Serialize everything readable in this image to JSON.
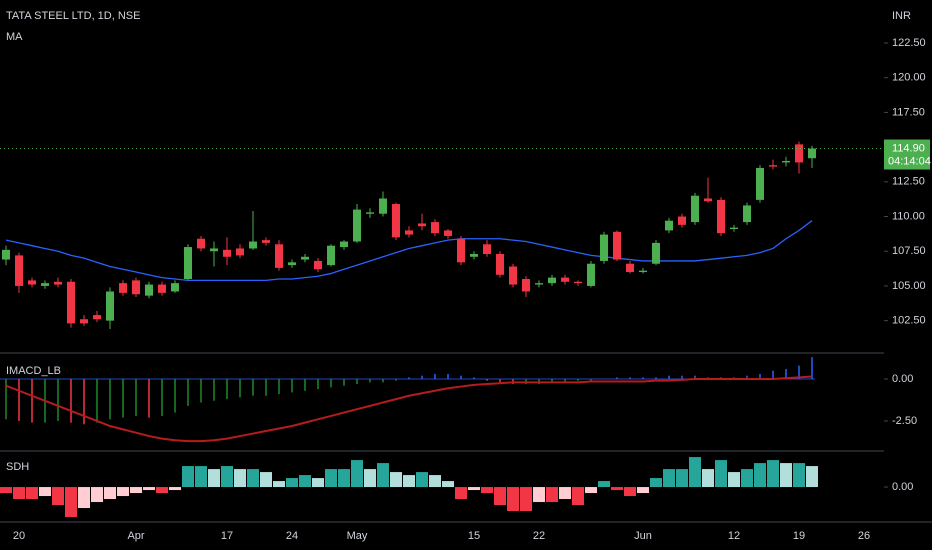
{
  "chart_data": [
    {
      "type": "candlestick",
      "title": "TATA STEEL LTD, 1D, NSE",
      "indicator_label": "MA",
      "currency": "INR",
      "up_color": "#26a69a",
      "down_color": "#ef5350",
      "candle_up_color": "#4caf50",
      "candle_down_color": "#f23645",
      "categories": [
        null,
        "20",
        null,
        null,
        null,
        null,
        null,
        null,
        null,
        null,
        "Apr",
        null,
        null,
        null,
        null,
        null,
        null,
        "17",
        null,
        null,
        null,
        null,
        "24",
        null,
        null,
        null,
        null,
        "May",
        null,
        null,
        null,
        null,
        null,
        null,
        null,
        null,
        "15",
        null,
        null,
        null,
        null,
        "22",
        null,
        null,
        null,
        null,
        null,
        null,
        null,
        "Jun",
        null,
        null,
        null,
        null,
        null,
        null,
        "12",
        null,
        null,
        null,
        null,
        "19",
        null,
        null,
        null,
        null,
        "26"
      ],
      "ohlc": [
        [
          106.9,
          107.9,
          106.5,
          107.6
        ],
        [
          107.2,
          107.4,
          104.5,
          105.0
        ],
        [
          105.4,
          105.6,
          104.9,
          105.1
        ],
        [
          105.0,
          105.4,
          104.8,
          105.2
        ],
        [
          105.3,
          105.6,
          104.9,
          105.1
        ],
        [
          105.3,
          105.5,
          102.0,
          102.3
        ],
        [
          102.6,
          102.9,
          102.1,
          102.3
        ],
        [
          102.9,
          103.2,
          102.4,
          102.6
        ],
        [
          102.5,
          104.9,
          101.9,
          104.6
        ],
        [
          105.2,
          105.4,
          104.3,
          104.5
        ],
        [
          105.4,
          105.6,
          104.2,
          104.4
        ],
        [
          104.3,
          105.3,
          104.1,
          105.1
        ],
        [
          105.1,
          105.3,
          104.3,
          104.5
        ],
        [
          104.6,
          105.4,
          104.5,
          105.2
        ],
        [
          105.5,
          108.0,
          105.4,
          107.8
        ],
        [
          108.4,
          108.6,
          107.5,
          107.7
        ],
        [
          107.5,
          108.2,
          106.4,
          107.7
        ],
        [
          107.6,
          108.5,
          106.5,
          107.1
        ],
        [
          107.7,
          108.0,
          107.0,
          107.2
        ],
        [
          107.7,
          110.4,
          107.6,
          108.2
        ],
        [
          108.3,
          108.5,
          107.9,
          108.1
        ],
        [
          108.0,
          108.3,
          106.1,
          106.3
        ],
        [
          106.5,
          106.9,
          106.3,
          106.7
        ],
        [
          106.9,
          107.3,
          106.7,
          107.1
        ],
        [
          106.8,
          107.0,
          106.0,
          106.2
        ],
        [
          106.5,
          108.0,
          106.4,
          107.9
        ],
        [
          107.8,
          108.3,
          107.6,
          108.2
        ],
        [
          108.2,
          110.9,
          108.1,
          110.5
        ],
        [
          110.2,
          110.6,
          109.9,
          110.3
        ],
        [
          110.2,
          111.8,
          110.0,
          111.3
        ],
        [
          110.9,
          111.0,
          108.3,
          108.5
        ],
        [
          109.0,
          109.3,
          108.5,
          108.7
        ],
        [
          109.5,
          110.2,
          109.0,
          109.3
        ],
        [
          109.6,
          109.8,
          108.6,
          108.8
        ],
        [
          109.0,
          109.1,
          108.4,
          108.6
        ],
        [
          108.4,
          108.6,
          106.5,
          106.7
        ],
        [
          107.1,
          107.5,
          106.9,
          107.3
        ],
        [
          108.0,
          108.3,
          107.1,
          107.3
        ],
        [
          107.3,
          107.5,
          105.6,
          105.8
        ],
        [
          106.4,
          106.6,
          104.9,
          105.1
        ],
        [
          105.5,
          105.7,
          104.2,
          104.6
        ],
        [
          105.1,
          105.4,
          104.9,
          105.2
        ],
        [
          105.2,
          105.8,
          105.0,
          105.6
        ],
        [
          105.6,
          105.8,
          105.1,
          105.3
        ],
        [
          105.3,
          105.4,
          105.0,
          105.2
        ],
        [
          105.0,
          106.8,
          104.9,
          106.6
        ],
        [
          106.8,
          108.9,
          106.6,
          108.7
        ],
        [
          108.9,
          109.0,
          106.8,
          106.9
        ],
        [
          106.6,
          106.8,
          105.9,
          106.0
        ],
        [
          106.0,
          106.3,
          105.9,
          106.1
        ],
        [
          106.6,
          108.3,
          106.5,
          108.1
        ],
        [
          109.0,
          109.9,
          108.8,
          109.7
        ],
        [
          110.0,
          110.2,
          109.2,
          109.4
        ],
        [
          109.6,
          111.7,
          109.4,
          111.5
        ],
        [
          111.3,
          112.8,
          111.0,
          111.1
        ],
        [
          111.2,
          111.4,
          108.6,
          108.8
        ],
        [
          109.1,
          109.4,
          108.9,
          109.2
        ],
        [
          109.6,
          111.0,
          109.4,
          110.8
        ],
        [
          111.2,
          113.7,
          111.0,
          113.5
        ],
        [
          113.7,
          114.1,
          113.4,
          113.6
        ],
        [
          113.9,
          114.3,
          113.6,
          114.0
        ],
        [
          115.2,
          115.4,
          113.1,
          113.9
        ],
        [
          114.2,
          115.1,
          113.5,
          114.9
        ],
        null,
        null,
        null,
        null
      ],
      "ma": {
        "name": "MA",
        "color": "#2962ff",
        "values": [
          108.3,
          108.1,
          107.9,
          107.7,
          107.5,
          107.2,
          107.0,
          106.7,
          106.4,
          106.2,
          106.0,
          105.8,
          105.6,
          105.5,
          105.4,
          105.4,
          105.4,
          105.4,
          105.4,
          105.4,
          105.4,
          105.5,
          105.5,
          105.6,
          105.7,
          105.9,
          106.2,
          106.5,
          106.8,
          107.1,
          107.4,
          107.7,
          107.9,
          108.1,
          108.3,
          108.4,
          108.4,
          108.4,
          108.4,
          108.3,
          108.2,
          108.0,
          107.8,
          107.6,
          107.4,
          107.2,
          107.1,
          107.0,
          106.9,
          106.8,
          106.8,
          106.8,
          106.8,
          106.8,
          106.9,
          107.0,
          107.1,
          107.2,
          107.4,
          107.7,
          108.4,
          109.0,
          109.7,
          null,
          null,
          null,
          null
        ]
      },
      "ylim": [
        100.24,
        125.6
      ],
      "yticks": [
        {
          "value": 102.5,
          "label": "102.50"
        },
        {
          "value": 105,
          "label": "105.00"
        },
        {
          "value": 107.5,
          "label": "107.50"
        },
        {
          "value": 110,
          "label": "110.00"
        },
        {
          "value": 112.5,
          "label": "112.50"
        },
        {
          "value": 117.5,
          "label": "117.50"
        },
        {
          "value": 120,
          "label": "120.00"
        },
        {
          "value": 122.5,
          "label": "122.50"
        }
      ],
      "last_price": {
        "value": 114.9,
        "label": "114.90"
      },
      "countdown": "04:14:04"
    },
    {
      "type": "macd",
      "title": "IMACD_LB",
      "histogram": [
        -2.4,
        -2.5,
        -2.6,
        -2.6,
        -2.5,
        -2.6,
        -2.7,
        -2.6,
        -2.4,
        -2.3,
        -2.2,
        -2.3,
        -2.2,
        -2.0,
        -1.6,
        -1.4,
        -1.3,
        -1.2,
        -1.1,
        -1.0,
        -1.0,
        -0.9,
        -0.8,
        -0.7,
        -0.6,
        -0.5,
        -0.4,
        -0.3,
        -0.2,
        -0.2,
        -0.1,
        0.1,
        0.2,
        0.3,
        0.3,
        0.2,
        0.1,
        -0.1,
        -0.2,
        -0.3,
        -0.3,
        -0.3,
        -0.2,
        -0.2,
        -0.1,
        -0.1,
        0,
        0.1,
        0.1,
        0.1,
        0.1,
        0.2,
        0.2,
        0.2,
        0.1,
        0.1,
        0.1,
        0.2,
        0.3,
        0.5,
        0.6,
        0.8,
        1.3
      ],
      "signal": {
        "color": "#b71c1c",
        "values": [
          -0.4,
          -0.7,
          -1.0,
          -1.3,
          -1.6,
          -1.9,
          -2.2,
          -2.5,
          -2.8,
          -3.0,
          -3.2,
          -3.4,
          -3.55,
          -3.65,
          -3.7,
          -3.7,
          -3.65,
          -3.55,
          -3.4,
          -3.25,
          -3.1,
          -2.95,
          -2.8,
          -2.6,
          -2.4,
          -2.2,
          -2.0,
          -1.8,
          -1.6,
          -1.4,
          -1.2,
          -1.0,
          -0.85,
          -0.7,
          -0.55,
          -0.45,
          -0.35,
          -0.3,
          -0.25,
          -0.2,
          -0.2,
          -0.2,
          -0.2,
          -0.2,
          -0.2,
          -0.15,
          -0.15,
          -0.15,
          -0.15,
          -0.15,
          -0.1,
          -0.1,
          -0.05,
          0,
          0,
          0,
          0,
          0,
          0,
          0,
          0.05,
          0.1,
          0.15
        ]
      },
      "colors": {
        "up": "#2962ff",
        "falling": "#f23645",
        "rising": "#1b8a2a"
      },
      "ylim": [
        -4.23,
        1.43
      ],
      "yticks": [
        {
          "value": 0,
          "label": "0.00"
        },
        {
          "value": -2.5,
          "label": "-2.50"
        }
      ]
    },
    {
      "type": "sdh",
      "title": "SDH",
      "values": [
        -0.2,
        -0.4,
        -0.4,
        -0.3,
        -0.6,
        -1.0,
        -0.7,
        -0.5,
        -0.4,
        -0.3,
        -0.2,
        -0.1,
        -0.2,
        -0.1,
        0.7,
        0.7,
        0.6,
        0.7,
        0.6,
        0.6,
        0.5,
        0.2,
        0.3,
        0.4,
        0.3,
        0.6,
        0.6,
        0.9,
        0.6,
        0.8,
        0.5,
        0.4,
        0.5,
        0.4,
        0.2,
        -0.4,
        -0.1,
        -0.2,
        -0.6,
        -0.8,
        -0.8,
        -0.5,
        -0.5,
        -0.4,
        -0.6,
        -0.2,
        0.2,
        -0.1,
        -0.3,
        -0.2,
        0.3,
        0.6,
        0.6,
        1.0,
        0.6,
        0.9,
        0.5,
        0.6,
        0.8,
        0.9,
        0.8,
        0.8,
        0.7
      ],
      "colors": {
        "pos_up": "#26a69a",
        "pos_down": "#b2dfdb",
        "neg_down": "#f23645",
        "neg_up": "#ffcdd2"
      },
      "ylim": [
        -1.1,
        1.17
      ],
      "yticks": [
        {
          "value": 0,
          "label": "0.00"
        }
      ]
    }
  ]
}
